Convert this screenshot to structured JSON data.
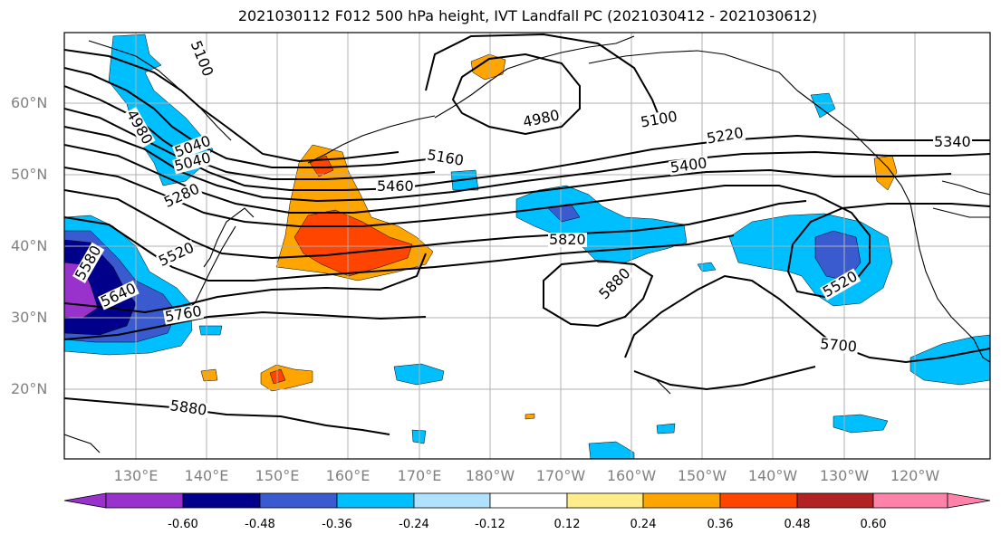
{
  "title": "2021030112 F012 500 hPa height, IVT Landfall PC (2021030412 - 2021030612)",
  "lat_labels": [
    "60°N",
    "50°N",
    "40°N",
    "30°N",
    "20°N"
  ],
  "lon_labels": [
    "130°E",
    "140°E",
    "150°E",
    "160°E",
    "170°E",
    "180°W",
    "170°W",
    "160°W",
    "150°W",
    "140°W",
    "130°W",
    "120°W"
  ],
  "contour_labels": [
    "5100",
    "4980",
    "5040",
    "5040",
    "4980",
    "5100",
    "5160",
    "5220",
    "5400",
    "5340",
    "5460",
    "5280",
    "5520",
    "5820",
    "5640",
    "5760",
    "5880",
    "5520",
    "5700",
    "5880",
    "5580"
  ],
  "colorbar": {
    "tick_labels": [
      "-0.60",
      "-0.48",
      "-0.36",
      "-0.24",
      "-0.12",
      "0.12",
      "0.24",
      "0.36",
      "0.48",
      "0.60"
    ],
    "colors": [
      "#9932cc",
      "#00008b",
      "#3a5bd0",
      "#00bfff",
      "#b0e2ff",
      "#ffffff",
      "#ffec8b",
      "#ffa500",
      "#ff4500",
      "#b22222",
      "#ff82ab"
    ]
  },
  "field_colors": {
    "purple": "#9932cc",
    "navy": "#00008b",
    "royal": "#3a5bd0",
    "sky": "#00bfff",
    "light_blue": "#b0e2ff",
    "yellow": "#ffec8b",
    "orange": "#ffa500",
    "red_orange": "#ff4500",
    "dark_red": "#b22222",
    "pink": "#ff82ab"
  }
}
